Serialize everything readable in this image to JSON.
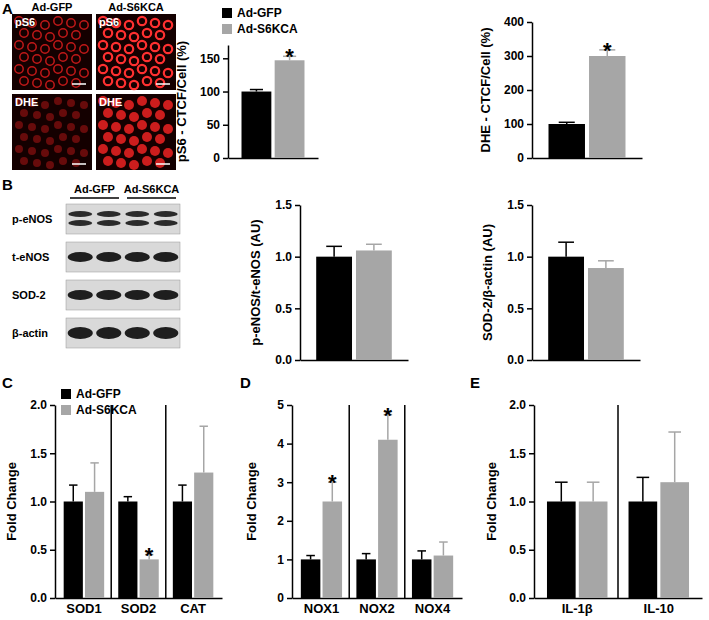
{
  "chart_data": [
    {
      "type": "bar",
      "y_label": "pS6 - CTCF/Cell (%)",
      "categories": [
        null
      ],
      "series": [
        {
          "name": "Ad-GFP",
          "color": "#000000",
          "values": [
            100
          ],
          "errors": [
            3
          ]
        },
        {
          "name": "Ad-S6KCA",
          "color": "#a6a6a6",
          "values": [
            147
          ],
          "errors": [
            6
          ],
          "annotations": [
            "*"
          ]
        }
      ],
      "ylim": [
        0,
        170
      ],
      "yticks": [
        0,
        50,
        100,
        150
      ],
      "grid": false,
      "legend": "top"
    },
    {
      "type": "bar",
      "y_label": "DHE - CTCF/Cell (%)",
      "categories": [
        null
      ],
      "series": [
        {
          "color": "#000000",
          "values": [
            100
          ],
          "errors": [
            5
          ]
        },
        {
          "color": "#a6a6a6",
          "values": [
            300
          ],
          "errors": [
            18
          ],
          "annotations": [
            "*"
          ]
        }
      ],
      "ylim": [
        0,
        400
      ],
      "yticks": [
        0,
        100,
        200,
        300,
        400
      ],
      "grid": false
    },
    {
      "type": "bar",
      "y_label": "p-eNOS/t-eNOS (AU)",
      "categories": [
        null
      ],
      "series": [
        {
          "color": "#000000",
          "values": [
            1
          ],
          "errors": [
            0.1
          ]
        },
        {
          "color": "#a6a6a6",
          "values": [
            1.06
          ],
          "errors": [
            0.06
          ]
        }
      ],
      "ylim": [
        0,
        1.5
      ],
      "yticks": [
        {
          "value": 0,
          "label": "0.0"
        },
        {
          "value": 0.5,
          "label": "0.5"
        },
        {
          "value": 1,
          "label": "1.0"
        },
        {
          "value": 1.5,
          "label": "1.5"
        }
      ],
      "grid": false
    },
    {
      "type": "bar",
      "y_label": "SOD-2/β-actin (AU)",
      "categories": [
        null
      ],
      "series": [
        {
          "color": "#000000",
          "values": [
            1
          ],
          "errors": [
            0.14
          ]
        },
        {
          "color": "#a6a6a6",
          "values": [
            0.89
          ],
          "errors": [
            0.07
          ]
        }
      ],
      "ylim": [
        0,
        1.5
      ],
      "yticks": [
        {
          "value": 0,
          "label": "0.0"
        },
        {
          "value": 0.5,
          "label": "0.5"
        },
        {
          "value": 1,
          "label": "1.0"
        },
        {
          "value": 1.5,
          "label": "1.5"
        }
      ],
      "grid": false
    },
    {
      "type": "bar",
      "y_label": "Fold Change",
      "categories": [
        "SOD1",
        "SOD2",
        "CAT"
      ],
      "series": [
        {
          "name": "Ad-GFP",
          "color": "#000000",
          "values": [
            1,
            1,
            1
          ],
          "errors": [
            0.17,
            0.05,
            0.17
          ]
        },
        {
          "name": "Ad-S6KCA",
          "color": "#a6a6a6",
          "values": [
            1.1,
            0.4,
            1.3
          ],
          "errors": [
            0.3,
            0.05,
            0.48
          ],
          "annotations": [
            null,
            "*",
            null
          ]
        }
      ],
      "ylim": [
        0,
        2
      ],
      "yticks": [
        {
          "value": 0,
          "label": "0.0"
        },
        {
          "value": 0.5,
          "label": "0.5"
        },
        {
          "value": 1,
          "label": "1.0"
        },
        {
          "value": 1.5,
          "label": "1.5"
        },
        {
          "value": 2,
          "label": "2.0"
        }
      ],
      "grid": false,
      "legend": "upper left"
    },
    {
      "type": "bar",
      "y_label": "Fold Change",
      "categories": [
        "NOX1",
        "NOX2",
        "NOX4"
      ],
      "series": [
        {
          "color": "#000000",
          "values": [
            1,
            1,
            1
          ],
          "errors": [
            0.1,
            0.15,
            0.22
          ]
        },
        {
          "color": "#a6a6a6",
          "values": [
            2.5,
            4.1,
            1.1
          ],
          "errors": [
            0.5,
            0.65,
            0.35
          ],
          "annotations": [
            "*",
            "*",
            null
          ]
        }
      ],
      "ylim": [
        0,
        5
      ],
      "yticks": [
        0,
        1,
        2,
        3,
        4,
        5
      ],
      "grid": false
    },
    {
      "type": "bar",
      "y_label": "Fold Change",
      "categories": [
        "IL-1β",
        "IL-10"
      ],
      "series": [
        {
          "color": "#000000",
          "values": [
            1,
            1
          ],
          "errors": [
            0.2,
            0.25
          ]
        },
        {
          "color": "#a6a6a6",
          "values": [
            1,
            1.2
          ],
          "errors": [
            0.2,
            0.52
          ]
        }
      ],
      "ylim": [
        0,
        2
      ],
      "yticks": [
        {
          "value": 0,
          "label": "0.0"
        },
        {
          "value": 0.5,
          "label": "0.5"
        },
        {
          "value": 1,
          "label": "1.0"
        },
        {
          "value": 1.5,
          "label": "1.5"
        },
        {
          "value": 2,
          "label": "2.0"
        }
      ],
      "grid": false
    }
  ],
  "figure": {
    "panels": [
      "A",
      "B",
      "C",
      "D",
      "E"
    ],
    "micrographs": {
      "columns": [
        "Ad-GFP",
        "Ad-S6KCA"
      ],
      "rows": [
        "pS6",
        "DHE"
      ]
    },
    "blot": {
      "groups": [
        "Ad-GFP",
        "Ad-S6KCA"
      ],
      "rows": [
        "p-eNOS",
        "t-eNOS",
        "SOD-2",
        "β-actin"
      ]
    }
  }
}
